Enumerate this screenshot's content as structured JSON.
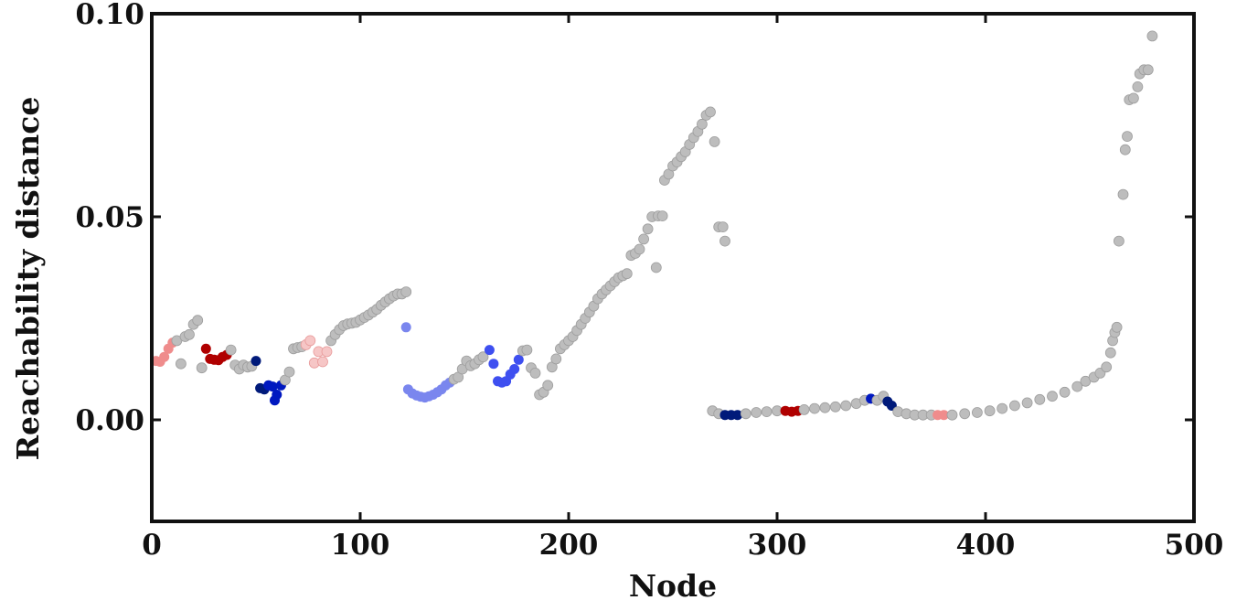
{
  "chart_data": {
    "type": "scatter",
    "title": "",
    "xlabel": "Node",
    "ylabel": "Reachability distance",
    "xlim": [
      0,
      500
    ],
    "ylim": [
      -0.025,
      0.1
    ],
    "xticks": [
      0,
      100,
      200,
      300,
      400,
      500
    ],
    "xtick_labels": [
      "0",
      "100",
      "200",
      "300",
      "400",
      "500"
    ],
    "yticks": [
      0.0,
      0.05,
      0.1
    ],
    "ytick_labels": [
      "0.00",
      "0.05",
      "0.10"
    ],
    "grid": false,
    "legend": "none",
    "colors": {
      "gray": "#bdbdbd",
      "light-red": "#ef8c8c",
      "pale-red": "#f6c6c6",
      "dark-red": "#b00000",
      "navy": "#001a7a",
      "dark-blue": "#0018c0",
      "light-blue": "#7a86ee",
      "blue": "#3e4ff0"
    },
    "points": [
      {
        "x": 2,
        "y": 0.0145,
        "c": "light-red"
      },
      {
        "x": 4,
        "y": 0.0143,
        "c": "light-red"
      },
      {
        "x": 6,
        "y": 0.0155,
        "c": "light-red"
      },
      {
        "x": 8,
        "y": 0.0175,
        "c": "light-red"
      },
      {
        "x": 10,
        "y": 0.019,
        "c": "light-red"
      },
      {
        "x": 12,
        "y": 0.0195,
        "c": "gray"
      },
      {
        "x": 14,
        "y": 0.0138,
        "c": "gray"
      },
      {
        "x": 16,
        "y": 0.0205,
        "c": "gray"
      },
      {
        "x": 18,
        "y": 0.021,
        "c": "gray"
      },
      {
        "x": 20,
        "y": 0.0235,
        "c": "gray"
      },
      {
        "x": 22,
        "y": 0.0245,
        "c": "gray"
      },
      {
        "x": 24,
        "y": 0.0128,
        "c": "gray"
      },
      {
        "x": 26,
        "y": 0.0175,
        "c": "dark-red"
      },
      {
        "x": 28,
        "y": 0.015,
        "c": "dark-red"
      },
      {
        "x": 30,
        "y": 0.0148,
        "c": "dark-red"
      },
      {
        "x": 32,
        "y": 0.0147,
        "c": "dark-red"
      },
      {
        "x": 34,
        "y": 0.0155,
        "c": "dark-red"
      },
      {
        "x": 36,
        "y": 0.016,
        "c": "dark-red"
      },
      {
        "x": 38,
        "y": 0.0172,
        "c": "gray"
      },
      {
        "x": 40,
        "y": 0.0135,
        "c": "gray"
      },
      {
        "x": 42,
        "y": 0.0125,
        "c": "gray"
      },
      {
        "x": 44,
        "y": 0.0135,
        "c": "gray"
      },
      {
        "x": 46,
        "y": 0.013,
        "c": "gray"
      },
      {
        "x": 48,
        "y": 0.0132,
        "c": "gray"
      },
      {
        "x": 50,
        "y": 0.0145,
        "c": "navy"
      },
      {
        "x": 52,
        "y": 0.0078,
        "c": "navy"
      },
      {
        "x": 54,
        "y": 0.0075,
        "c": "navy"
      },
      {
        "x": 56,
        "y": 0.0085,
        "c": "dark-blue"
      },
      {
        "x": 58,
        "y": 0.0082,
        "c": "dark-blue"
      },
      {
        "x": 59,
        "y": 0.0048,
        "c": "dark-blue"
      },
      {
        "x": 60,
        "y": 0.0062,
        "c": "dark-blue"
      },
      {
        "x": 62,
        "y": 0.0085,
        "c": "dark-blue"
      },
      {
        "x": 64,
        "y": 0.0098,
        "c": "gray"
      },
      {
        "x": 66,
        "y": 0.0118,
        "c": "gray"
      },
      {
        "x": 68,
        "y": 0.0175,
        "c": "gray"
      },
      {
        "x": 70,
        "y": 0.0178,
        "c": "gray"
      },
      {
        "x": 72,
        "y": 0.018,
        "c": "gray"
      },
      {
        "x": 74,
        "y": 0.0185,
        "c": "pale-red"
      },
      {
        "x": 76,
        "y": 0.0195,
        "c": "pale-red"
      },
      {
        "x": 78,
        "y": 0.014,
        "c": "pale-red"
      },
      {
        "x": 80,
        "y": 0.0168,
        "c": "pale-red"
      },
      {
        "x": 82,
        "y": 0.0143,
        "c": "pale-red"
      },
      {
        "x": 84,
        "y": 0.0168,
        "c": "pale-red"
      },
      {
        "x": 86,
        "y": 0.0195,
        "c": "gray"
      },
      {
        "x": 88,
        "y": 0.021,
        "c": "gray"
      },
      {
        "x": 90,
        "y": 0.0222,
        "c": "gray"
      },
      {
        "x": 92,
        "y": 0.0232,
        "c": "gray"
      },
      {
        "x": 94,
        "y": 0.0236,
        "c": "gray"
      },
      {
        "x": 96,
        "y": 0.0238,
        "c": "gray"
      },
      {
        "x": 98,
        "y": 0.024,
        "c": "gray"
      },
      {
        "x": 100,
        "y": 0.0246,
        "c": "gray"
      },
      {
        "x": 102,
        "y": 0.0252,
        "c": "gray"
      },
      {
        "x": 104,
        "y": 0.0258,
        "c": "gray"
      },
      {
        "x": 106,
        "y": 0.0265,
        "c": "gray"
      },
      {
        "x": 108,
        "y": 0.0272,
        "c": "gray"
      },
      {
        "x": 110,
        "y": 0.0282,
        "c": "gray"
      },
      {
        "x": 112,
        "y": 0.029,
        "c": "gray"
      },
      {
        "x": 114,
        "y": 0.0298,
        "c": "gray"
      },
      {
        "x": 116,
        "y": 0.0305,
        "c": "gray"
      },
      {
        "x": 118,
        "y": 0.031,
        "c": "gray"
      },
      {
        "x": 120,
        "y": 0.031,
        "c": "gray"
      },
      {
        "x": 122,
        "y": 0.0315,
        "c": "gray"
      },
      {
        "x": 122,
        "y": 0.0228,
        "c": "light-blue"
      },
      {
        "x": 123,
        "y": 0.0075,
        "c": "light-blue"
      },
      {
        "x": 125,
        "y": 0.0065,
        "c": "light-blue"
      },
      {
        "x": 127,
        "y": 0.006,
        "c": "light-blue"
      },
      {
        "x": 129,
        "y": 0.0057,
        "c": "light-blue"
      },
      {
        "x": 131,
        "y": 0.0055,
        "c": "light-blue"
      },
      {
        "x": 133,
        "y": 0.0058,
        "c": "light-blue"
      },
      {
        "x": 135,
        "y": 0.0062,
        "c": "light-blue"
      },
      {
        "x": 137,
        "y": 0.0068,
        "c": "light-blue"
      },
      {
        "x": 139,
        "y": 0.0075,
        "c": "light-blue"
      },
      {
        "x": 141,
        "y": 0.0085,
        "c": "light-blue"
      },
      {
        "x": 143,
        "y": 0.0092,
        "c": "light-blue"
      },
      {
        "x": 145,
        "y": 0.01,
        "c": "gray"
      },
      {
        "x": 147,
        "y": 0.0105,
        "c": "gray"
      },
      {
        "x": 149,
        "y": 0.0125,
        "c": "gray"
      },
      {
        "x": 151,
        "y": 0.0145,
        "c": "gray"
      },
      {
        "x": 153,
        "y": 0.0133,
        "c": "gray"
      },
      {
        "x": 155,
        "y": 0.0138,
        "c": "gray"
      },
      {
        "x": 157,
        "y": 0.0148,
        "c": "gray"
      },
      {
        "x": 159,
        "y": 0.0155,
        "c": "gray"
      },
      {
        "x": 162,
        "y": 0.0172,
        "c": "blue"
      },
      {
        "x": 164,
        "y": 0.0138,
        "c": "blue"
      },
      {
        "x": 166,
        "y": 0.0095,
        "c": "blue"
      },
      {
        "x": 168,
        "y": 0.0092,
        "c": "blue"
      },
      {
        "x": 170,
        "y": 0.0095,
        "c": "blue"
      },
      {
        "x": 172,
        "y": 0.0112,
        "c": "blue"
      },
      {
        "x": 174,
        "y": 0.0125,
        "c": "blue"
      },
      {
        "x": 176,
        "y": 0.0148,
        "c": "blue"
      },
      {
        "x": 178,
        "y": 0.017,
        "c": "gray"
      },
      {
        "x": 180,
        "y": 0.0172,
        "c": "gray"
      },
      {
        "x": 182,
        "y": 0.0128,
        "c": "gray"
      },
      {
        "x": 184,
        "y": 0.0115,
        "c": "gray"
      },
      {
        "x": 186,
        "y": 0.0062,
        "c": "gray"
      },
      {
        "x": 188,
        "y": 0.0068,
        "c": "gray"
      },
      {
        "x": 190,
        "y": 0.0085,
        "c": "gray"
      },
      {
        "x": 192,
        "y": 0.013,
        "c": "gray"
      },
      {
        "x": 194,
        "y": 0.015,
        "c": "gray"
      },
      {
        "x": 196,
        "y": 0.0175,
        "c": "gray"
      },
      {
        "x": 198,
        "y": 0.0185,
        "c": "gray"
      },
      {
        "x": 200,
        "y": 0.0195,
        "c": "gray"
      },
      {
        "x": 202,
        "y": 0.0205,
        "c": "gray"
      },
      {
        "x": 204,
        "y": 0.022,
        "c": "gray"
      },
      {
        "x": 206,
        "y": 0.0235,
        "c": "gray"
      },
      {
        "x": 208,
        "y": 0.025,
        "c": "gray"
      },
      {
        "x": 210,
        "y": 0.0265,
        "c": "gray"
      },
      {
        "x": 212,
        "y": 0.028,
        "c": "gray"
      },
      {
        "x": 214,
        "y": 0.0298,
        "c": "gray"
      },
      {
        "x": 216,
        "y": 0.031,
        "c": "gray"
      },
      {
        "x": 218,
        "y": 0.032,
        "c": "gray"
      },
      {
        "x": 220,
        "y": 0.033,
        "c": "gray"
      },
      {
        "x": 222,
        "y": 0.034,
        "c": "gray"
      },
      {
        "x": 224,
        "y": 0.035,
        "c": "gray"
      },
      {
        "x": 226,
        "y": 0.0355,
        "c": "gray"
      },
      {
        "x": 228,
        "y": 0.036,
        "c": "gray"
      },
      {
        "x": 230,
        "y": 0.0405,
        "c": "gray"
      },
      {
        "x": 232,
        "y": 0.041,
        "c": "gray"
      },
      {
        "x": 234,
        "y": 0.042,
        "c": "gray"
      },
      {
        "x": 236,
        "y": 0.0445,
        "c": "gray"
      },
      {
        "x": 238,
        "y": 0.047,
        "c": "gray"
      },
      {
        "x": 240,
        "y": 0.05,
        "c": "gray"
      },
      {
        "x": 242,
        "y": 0.0375,
        "c": "gray"
      },
      {
        "x": 243,
        "y": 0.0502,
        "c": "gray"
      },
      {
        "x": 245,
        "y": 0.0502,
        "c": "gray"
      },
      {
        "x": 246,
        "y": 0.059,
        "c": "gray"
      },
      {
        "x": 248,
        "y": 0.0605,
        "c": "gray"
      },
      {
        "x": 250,
        "y": 0.0625,
        "c": "gray"
      },
      {
        "x": 252,
        "y": 0.0635,
        "c": "gray"
      },
      {
        "x": 254,
        "y": 0.0648,
        "c": "gray"
      },
      {
        "x": 256,
        "y": 0.066,
        "c": "gray"
      },
      {
        "x": 258,
        "y": 0.0678,
        "c": "gray"
      },
      {
        "x": 260,
        "y": 0.0695,
        "c": "gray"
      },
      {
        "x": 262,
        "y": 0.071,
        "c": "gray"
      },
      {
        "x": 264,
        "y": 0.0728,
        "c": "gray"
      },
      {
        "x": 266,
        "y": 0.075,
        "c": "gray"
      },
      {
        "x": 268,
        "y": 0.0758,
        "c": "gray"
      },
      {
        "x": 270,
        "y": 0.0685,
        "c": "gray"
      },
      {
        "x": 272,
        "y": 0.0475,
        "c": "gray"
      },
      {
        "x": 274,
        "y": 0.0475,
        "c": "gray"
      },
      {
        "x": 275,
        "y": 0.044,
        "c": "gray"
      },
      {
        "x": 269,
        "y": 0.0022,
        "c": "gray"
      },
      {
        "x": 272,
        "y": 0.0015,
        "c": "gray"
      },
      {
        "x": 275,
        "y": 0.0012,
        "c": "navy"
      },
      {
        "x": 278,
        "y": 0.0012,
        "c": "navy"
      },
      {
        "x": 281,
        "y": 0.0012,
        "c": "navy"
      },
      {
        "x": 285,
        "y": 0.0015,
        "c": "gray"
      },
      {
        "x": 290,
        "y": 0.0018,
        "c": "gray"
      },
      {
        "x": 295,
        "y": 0.002,
        "c": "gray"
      },
      {
        "x": 300,
        "y": 0.0022,
        "c": "gray"
      },
      {
        "x": 304,
        "y": 0.0022,
        "c": "dark-red"
      },
      {
        "x": 307,
        "y": 0.002,
        "c": "dark-red"
      },
      {
        "x": 310,
        "y": 0.0022,
        "c": "dark-red"
      },
      {
        "x": 313,
        "y": 0.0025,
        "c": "gray"
      },
      {
        "x": 318,
        "y": 0.0028,
        "c": "gray"
      },
      {
        "x": 323,
        "y": 0.003,
        "c": "gray"
      },
      {
        "x": 328,
        "y": 0.0032,
        "c": "gray"
      },
      {
        "x": 333,
        "y": 0.0035,
        "c": "gray"
      },
      {
        "x": 338,
        "y": 0.004,
        "c": "gray"
      },
      {
        "x": 342,
        "y": 0.0048,
        "c": "gray"
      },
      {
        "x": 345,
        "y": 0.0052,
        "c": "dark-blue"
      },
      {
        "x": 348,
        "y": 0.0048,
        "c": "gray"
      },
      {
        "x": 351,
        "y": 0.0058,
        "c": "gray"
      },
      {
        "x": 353,
        "y": 0.0045,
        "c": "navy"
      },
      {
        "x": 355,
        "y": 0.0035,
        "c": "navy"
      },
      {
        "x": 358,
        "y": 0.002,
        "c": "gray"
      },
      {
        "x": 362,
        "y": 0.0015,
        "c": "gray"
      },
      {
        "x": 366,
        "y": 0.0012,
        "c": "gray"
      },
      {
        "x": 370,
        "y": 0.0012,
        "c": "gray"
      },
      {
        "x": 374,
        "y": 0.0012,
        "c": "gray"
      },
      {
        "x": 377,
        "y": 0.0012,
        "c": "light-red"
      },
      {
        "x": 380,
        "y": 0.0012,
        "c": "light-red"
      },
      {
        "x": 384,
        "y": 0.0012,
        "c": "gray"
      },
      {
        "x": 390,
        "y": 0.0015,
        "c": "gray"
      },
      {
        "x": 396,
        "y": 0.0018,
        "c": "gray"
      },
      {
        "x": 402,
        "y": 0.0022,
        "c": "gray"
      },
      {
        "x": 408,
        "y": 0.0028,
        "c": "gray"
      },
      {
        "x": 414,
        "y": 0.0035,
        "c": "gray"
      },
      {
        "x": 420,
        "y": 0.0042,
        "c": "gray"
      },
      {
        "x": 426,
        "y": 0.005,
        "c": "gray"
      },
      {
        "x": 432,
        "y": 0.0058,
        "c": "gray"
      },
      {
        "x": 438,
        "y": 0.0068,
        "c": "gray"
      },
      {
        "x": 444,
        "y": 0.0082,
        "c": "gray"
      },
      {
        "x": 448,
        "y": 0.0095,
        "c": "gray"
      },
      {
        "x": 452,
        "y": 0.0105,
        "c": "gray"
      },
      {
        "x": 455,
        "y": 0.0115,
        "c": "gray"
      },
      {
        "x": 458,
        "y": 0.013,
        "c": "gray"
      },
      {
        "x": 460,
        "y": 0.0165,
        "c": "gray"
      },
      {
        "x": 461,
        "y": 0.0195,
        "c": "gray"
      },
      {
        "x": 462,
        "y": 0.0215,
        "c": "gray"
      },
      {
        "x": 463,
        "y": 0.0228,
        "c": "gray"
      },
      {
        "x": 464,
        "y": 0.044,
        "c": "gray"
      },
      {
        "x": 466,
        "y": 0.0555,
        "c": "gray"
      },
      {
        "x": 467,
        "y": 0.0665,
        "c": "gray"
      },
      {
        "x": 468,
        "y": 0.0698,
        "c": "gray"
      },
      {
        "x": 469,
        "y": 0.0788,
        "c": "gray"
      },
      {
        "x": 471,
        "y": 0.0792,
        "c": "gray"
      },
      {
        "x": 473,
        "y": 0.082,
        "c": "gray"
      },
      {
        "x": 474,
        "y": 0.0852,
        "c": "gray"
      },
      {
        "x": 476,
        "y": 0.0862,
        "c": "gray"
      },
      {
        "x": 478,
        "y": 0.0862,
        "c": "gray"
      },
      {
        "x": 480,
        "y": 0.0945,
        "c": "gray"
      }
    ]
  }
}
